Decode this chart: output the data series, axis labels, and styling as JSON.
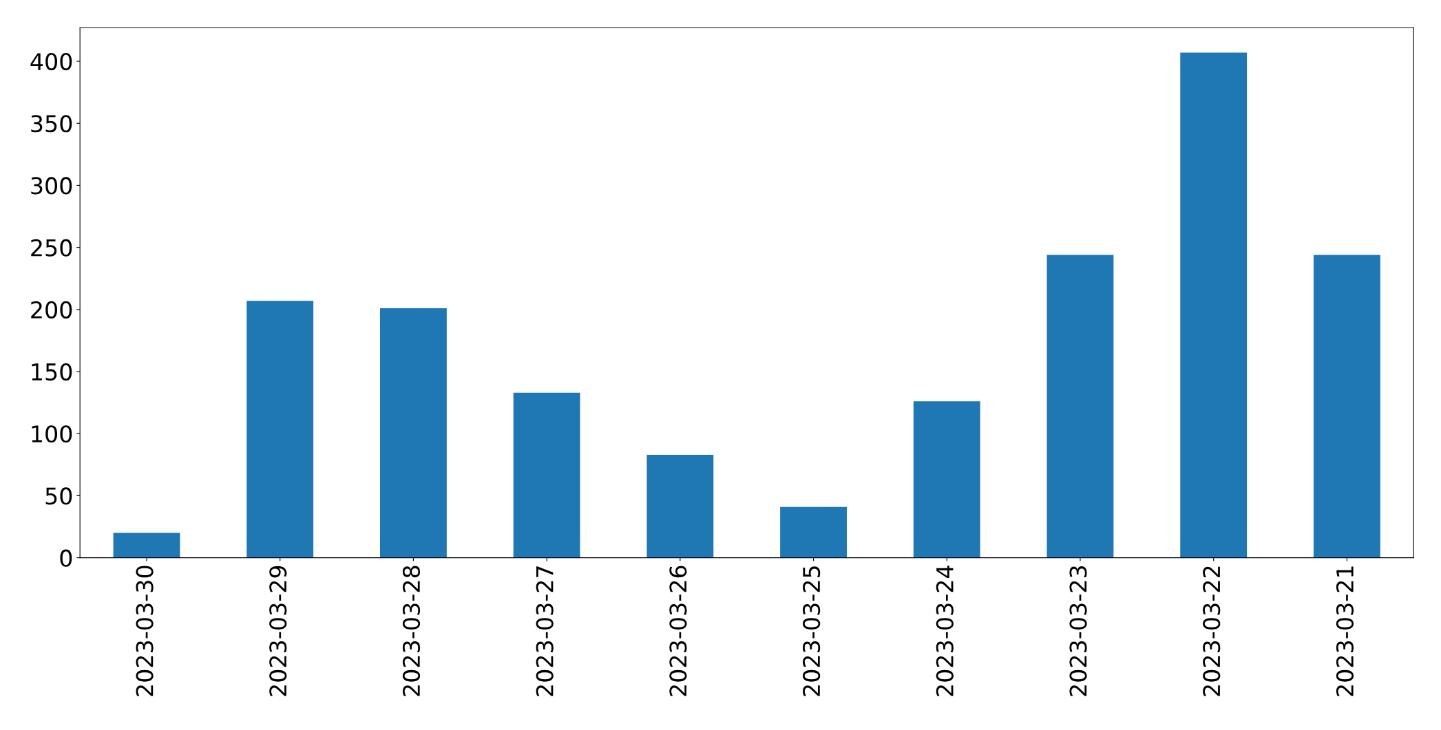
{
  "chart_data": {
    "type": "bar",
    "categories": [
      "2023-03-30",
      "2023-03-29",
      "2023-03-28",
      "2023-03-27",
      "2023-03-26",
      "2023-03-25",
      "2023-03-24",
      "2023-03-23",
      "2023-03-22",
      "2023-03-21"
    ],
    "values": [
      20,
      207,
      201,
      133,
      83,
      41,
      126,
      244,
      407,
      244
    ],
    "color": "#1f77b4",
    "ylim": [
      0,
      427
    ],
    "yticks": [
      0,
      50,
      100,
      150,
      200,
      250,
      300,
      350,
      400
    ],
    "grid": false
  }
}
